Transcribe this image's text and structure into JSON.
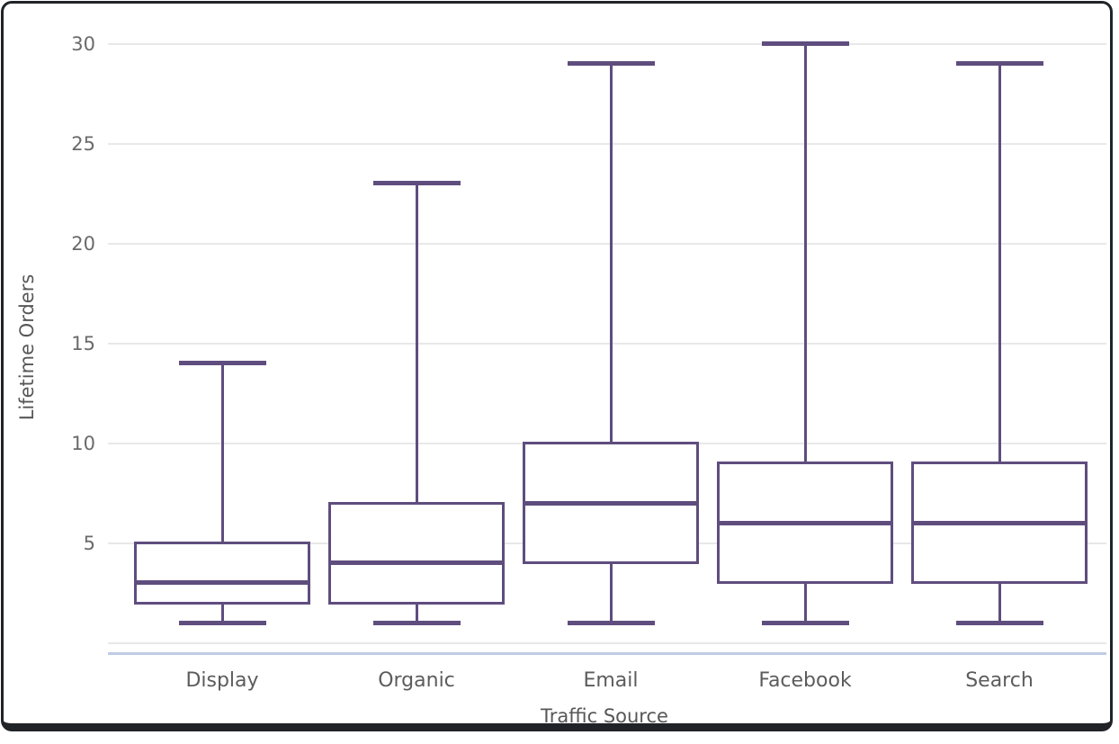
{
  "window": {
    "background_color": "#ffffff",
    "frame_border_color": "#202428"
  },
  "colors": {
    "box_stroke": "#5f4d7e",
    "gridline": "#e8e8e8",
    "axis_baseline": "#bfcce5",
    "tick_text": "#6a6a6a",
    "label_text": "#5c5c5c"
  },
  "chart_data": {
    "type": "boxplot",
    "title": "",
    "xlabel": "Traffic Source",
    "ylabel": "Lifetime Orders",
    "categories": [
      "Display",
      "Organic",
      "Email",
      "Facebook",
      "Search"
    ],
    "yticks": [
      5,
      10,
      15,
      20,
      25,
      30
    ],
    "ylim": [
      0,
      30
    ],
    "grid": true,
    "legend": false,
    "series": [
      {
        "category": "Display",
        "min": 1,
        "q1": 2,
        "median": 3,
        "q3": 5,
        "max": 14
      },
      {
        "category": "Organic",
        "min": 1,
        "q1": 2,
        "median": 4,
        "q3": 7,
        "max": 23
      },
      {
        "category": "Email",
        "min": 1,
        "q1": 4,
        "median": 7,
        "q3": 10,
        "max": 29
      },
      {
        "category": "Facebook",
        "min": 1,
        "q1": 3,
        "median": 6,
        "q3": 9,
        "max": 30
      },
      {
        "category": "Search",
        "min": 1,
        "q1": 3,
        "median": 6,
        "q3": 9,
        "max": 29
      }
    ]
  }
}
